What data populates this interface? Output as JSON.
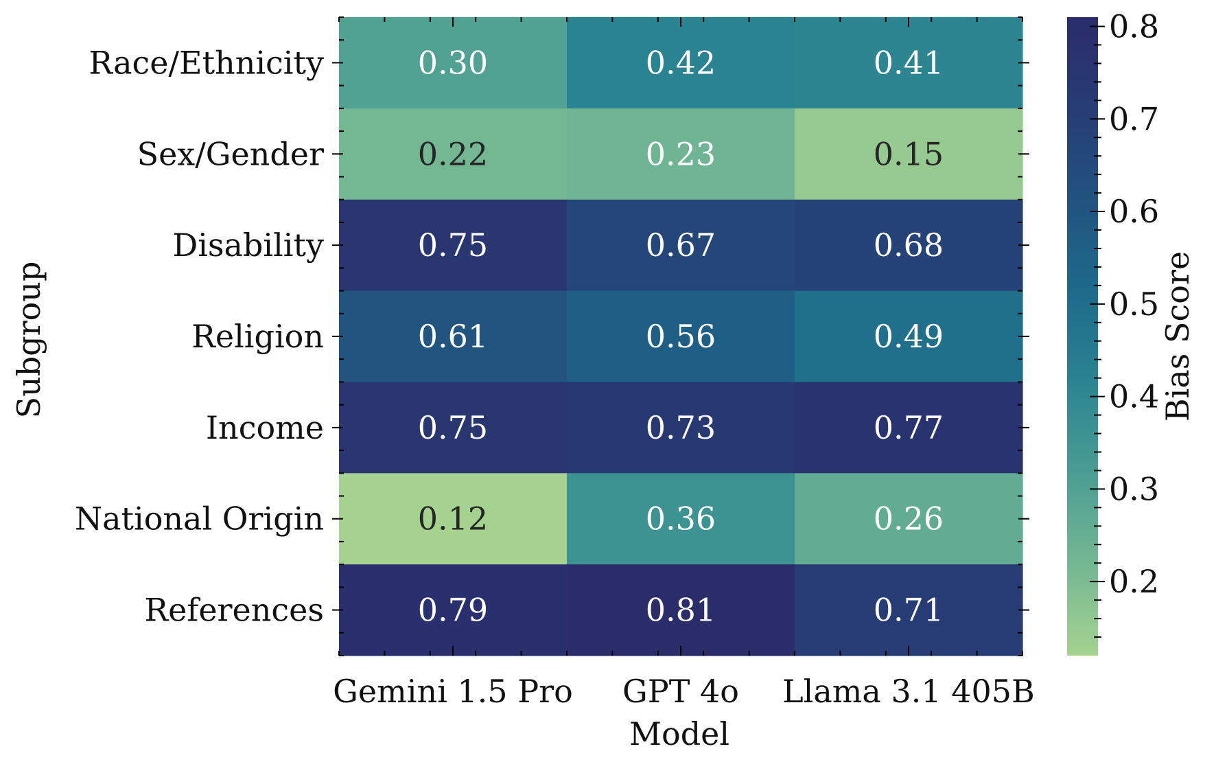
{
  "chart_data": {
    "type": "heatmap",
    "title": "",
    "xlabel": "Model",
    "ylabel": "Subgroup",
    "x_categories": [
      "Gemini 1.5 Pro",
      "GPT 4o",
      "Llama 3.1 405B"
    ],
    "y_categories": [
      "Race/Ethnicity",
      "Sex/Gender",
      "Disability",
      "Religion",
      "Income",
      "National Origin",
      "References"
    ],
    "values": [
      [
        0.3,
        0.42,
        0.41
      ],
      [
        0.22,
        0.23,
        0.15
      ],
      [
        0.75,
        0.67,
        0.68
      ],
      [
        0.61,
        0.56,
        0.49
      ],
      [
        0.75,
        0.73,
        0.77
      ],
      [
        0.12,
        0.36,
        0.26
      ],
      [
        0.79,
        0.81,
        0.71
      ]
    ],
    "cell_labels": [
      [
        "0.30",
        "0.42",
        "0.41"
      ],
      [
        "0.22",
        "0.23",
        "0.15"
      ],
      [
        "0.75",
        "0.67",
        "0.68"
      ],
      [
        "0.61",
        "0.56",
        "0.49"
      ],
      [
        "0.75",
        "0.73",
        "0.77"
      ],
      [
        "0.12",
        "0.36",
        "0.26"
      ],
      [
        "0.79",
        "0.81",
        "0.71"
      ]
    ],
    "colorbar": {
      "label": "Bias Score",
      "range": [
        0.12,
        0.81
      ],
      "ticks": [
        0.2,
        0.3,
        0.4,
        0.5,
        0.6,
        0.7,
        0.8
      ],
      "tick_labels": [
        "0.2",
        "0.3",
        "0.4",
        "0.5",
        "0.6",
        "0.7",
        "0.8"
      ],
      "colormap": "crest",
      "colormap_stops": [
        "#a5d28f",
        "#74b793",
        "#4a9d93",
        "#2b8491",
        "#1d6a8b",
        "#21537f",
        "#273c74",
        "#2b2d6b"
      ],
      "text_dark": "#262626",
      "text_light": "#ffffff"
    }
  }
}
